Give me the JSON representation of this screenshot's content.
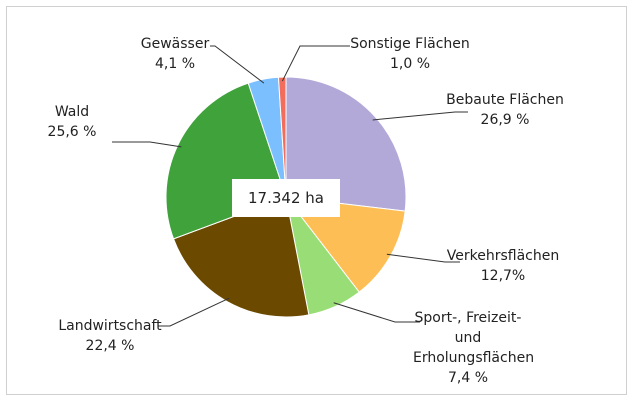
{
  "chart_data": {
    "type": "pie",
    "categories": [
      "Bebaute Flächen",
      "Verkehrsflächen",
      "Sport-, Freizeit- und Erholungsflächen",
      "Landwirtschaft",
      "Wald",
      "Gewässer",
      "Sonstige Flächen"
    ],
    "values": [
      26.9,
      12.7,
      7.4,
      22.4,
      25.6,
      4.1,
      1.0
    ],
    "value_labels": [
      "26,9 %",
      "12,7%",
      "7,4 %",
      "22,4 %",
      "25,6 %",
      "4,1 %",
      "1,0 %"
    ],
    "colors": [
      "#b3a9d9",
      "#fdbf55",
      "#99dd77",
      "#6b4a00",
      "#3fa23a",
      "#7bbfff",
      "#f26d5b"
    ],
    "annotation": "17.342 ha"
  }
}
